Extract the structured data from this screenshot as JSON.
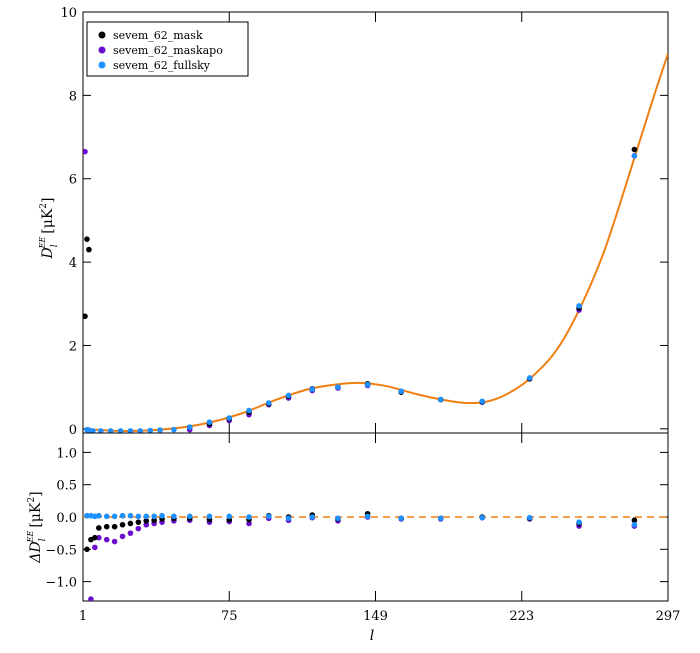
{
  "chart_data": [
    {
      "type": "scatter",
      "panel": "top",
      "ylabel": "D_l^EE [μK²]",
      "ylabel_parts": {
        "sym": "D",
        "sub": "l",
        "sup": "EE",
        "unit": "[μK",
        "unit_sup": "2",
        "unit_close": "]"
      },
      "xlim": [
        1,
        297
      ],
      "ylim": [
        -0.1,
        10
      ],
      "x_ticks": [
        1,
        75,
        149,
        223,
        297
      ],
      "y_ticks": [
        0,
        2,
        4,
        6,
        8,
        10
      ],
      "y_tick_labels": [
        "0",
        "2",
        "4",
        "6",
        "8",
        "10"
      ],
      "legend_position": "top-left",
      "series": [
        {
          "name": "sevem_62_mask",
          "color": "#000000",
          "points": [
            [
              2,
              2.7
            ],
            [
              3,
              4.55
            ],
            [
              4,
              4.3
            ],
            [
              55,
              0.04
            ],
            [
              65,
              0.12
            ],
            [
              75,
              0.24
            ],
            [
              85,
              0.4
            ],
            [
              95,
              0.6
            ],
            [
              105,
              0.78
            ],
            [
              117,
              0.96
            ],
            [
              130,
              1.0
            ],
            [
              145,
              1.08
            ],
            [
              162,
              0.88
            ],
            [
              182,
              0.7
            ],
            [
              203,
              0.65
            ],
            [
              227,
              1.2
            ],
            [
              252,
              2.9
            ],
            [
              280,
              6.7
            ]
          ]
        },
        {
          "name": "sevem_62_maskapo",
          "color": "#6a0dcc",
          "points": [
            [
              2,
              6.65
            ],
            [
              55,
              -0.02
            ],
            [
              65,
              0.08
            ],
            [
              75,
              0.2
            ],
            [
              85,
              0.34
            ],
            [
              95,
              0.58
            ],
            [
              105,
              0.74
            ],
            [
              117,
              0.92
            ],
            [
              130,
              0.98
            ],
            [
              145,
              1.04
            ],
            [
              162,
              0.9
            ],
            [
              182,
              0.7
            ],
            [
              203,
              0.64
            ],
            [
              227,
              1.2
            ],
            [
              252,
              2.85
            ],
            [
              280,
              6.55
            ]
          ]
        },
        {
          "name": "sevem_62_fullsky",
          "color": "#1e90ff",
          "points": [
            [
              3,
              -0.02
            ],
            [
              4,
              -0.03
            ],
            [
              6,
              -0.05
            ],
            [
              10,
              -0.05
            ],
            [
              15,
              -0.05
            ],
            [
              20,
              -0.05
            ],
            [
              25,
              -0.05
            ],
            [
              30,
              -0.05
            ],
            [
              35,
              -0.04
            ],
            [
              40,
              -0.03
            ],
            [
              47,
              -0.02
            ],
            [
              55,
              0.04
            ],
            [
              65,
              0.16
            ],
            [
              75,
              0.26
            ],
            [
              85,
              0.44
            ],
            [
              95,
              0.62
            ],
            [
              105,
              0.8
            ],
            [
              117,
              0.95
            ],
            [
              130,
              1.0
            ],
            [
              145,
              1.06
            ],
            [
              162,
              0.9
            ],
            [
              182,
              0.7
            ],
            [
              203,
              0.66
            ],
            [
              227,
              1.22
            ],
            [
              252,
              2.95
            ],
            [
              280,
              6.55
            ]
          ]
        }
      ],
      "model_curve": {
        "color": "#f07f13",
        "points": [
          [
            2,
            0.0
          ],
          [
            20,
            -0.05
          ],
          [
            40,
            -0.02
          ],
          [
            60,
            0.1
          ],
          [
            80,
            0.35
          ],
          [
            100,
            0.72
          ],
          [
            115,
            0.95
          ],
          [
            130,
            1.07
          ],
          [
            142,
            1.1
          ],
          [
            155,
            1.02
          ],
          [
            170,
            0.83
          ],
          [
            185,
            0.68
          ],
          [
            195,
            0.62
          ],
          [
            205,
            0.65
          ],
          [
            215,
            0.82
          ],
          [
            227,
            1.2
          ],
          [
            240,
            1.85
          ],
          [
            252,
            2.85
          ],
          [
            265,
            4.3
          ],
          [
            280,
            6.5
          ],
          [
            290,
            8.0
          ],
          [
            297,
            9.0
          ]
        ]
      }
    },
    {
      "type": "scatter",
      "panel": "bottom",
      "xlabel": "l",
      "ylabel": "ΔD_l^EE [μK²]",
      "ylabel_parts": {
        "sym": "ΔD",
        "sub": "l",
        "sup": "EE",
        "unit": "[μK",
        "unit_sup": "2",
        "unit_close": "]"
      },
      "xlim": [
        1,
        297
      ],
      "ylim": [
        -1.3,
        1.3
      ],
      "x_ticks": [
        1,
        75,
        149,
        223,
        297
      ],
      "x_tick_labels": [
        "1",
        "75",
        "149",
        "223",
        "297"
      ],
      "y_ticks": [
        -1.0,
        -0.5,
        0.0,
        0.5,
        1.0
      ],
      "y_tick_labels": [
        "−1.0",
        "−0.5",
        "0.0",
        "0.5",
        "1.0"
      ],
      "zero_line": {
        "y": 0.0,
        "color": "#f07f13",
        "style": "dashed"
      },
      "series": [
        {
          "name": "sevem_62_mask",
          "color": "#000000",
          "points": [
            [
              3,
              -0.5
            ],
            [
              5,
              -0.35
            ],
            [
              7,
              -0.32
            ],
            [
              9,
              -0.17
            ],
            [
              13,
              -0.15
            ],
            [
              17,
              -0.15
            ],
            [
              21,
              -0.12
            ],
            [
              25,
              -0.1
            ],
            [
              29,
              -0.08
            ],
            [
              33,
              -0.06
            ],
            [
              37,
              -0.05
            ],
            [
              41,
              -0.03
            ],
            [
              47,
              -0.02
            ],
            [
              55,
              -0.02
            ],
            [
              65,
              -0.04
            ],
            [
              75,
              -0.04
            ],
            [
              85,
              -0.04
            ],
            [
              95,
              0.02
            ],
            [
              105,
              0.0
            ],
            [
              117,
              0.03
            ],
            [
              130,
              -0.03
            ],
            [
              145,
              0.05
            ],
            [
              162,
              -0.02
            ],
            [
              182,
              -0.02
            ],
            [
              203,
              0.0
            ],
            [
              227,
              -0.02
            ],
            [
              252,
              -0.1
            ],
            [
              280,
              -0.05
            ]
          ]
        },
        {
          "name": "sevem_62_maskapo",
          "color": "#6a0dcc",
          "points": [
            [
              5,
              -1.27
            ],
            [
              7,
              -0.47
            ],
            [
              9,
              -0.32
            ],
            [
              13,
              -0.35
            ],
            [
              17,
              -0.38
            ],
            [
              21,
              -0.3
            ],
            [
              25,
              -0.25
            ],
            [
              29,
              -0.18
            ],
            [
              33,
              -0.12
            ],
            [
              37,
              -0.1
            ],
            [
              41,
              -0.08
            ],
            [
              47,
              -0.06
            ],
            [
              55,
              -0.05
            ],
            [
              65,
              -0.08
            ],
            [
              75,
              -0.07
            ],
            [
              85,
              -0.1
            ],
            [
              95,
              -0.02
            ],
            [
              105,
              -0.05
            ],
            [
              117,
              -0.01
            ],
            [
              130,
              -0.06
            ],
            [
              145,
              0.0
            ],
            [
              162,
              -0.03
            ],
            [
              182,
              -0.03
            ],
            [
              203,
              -0.01
            ],
            [
              227,
              -0.03
            ],
            [
              252,
              -0.14
            ],
            [
              280,
              -0.14
            ]
          ]
        },
        {
          "name": "sevem_62_fullsky",
          "color": "#1e90ff",
          "points": [
            [
              3,
              0.02
            ],
            [
              5,
              0.02
            ],
            [
              7,
              0.01
            ],
            [
              9,
              0.02
            ],
            [
              13,
              0.01
            ],
            [
              17,
              0.01
            ],
            [
              21,
              0.02
            ],
            [
              25,
              0.02
            ],
            [
              29,
              0.01
            ],
            [
              33,
              0.01
            ],
            [
              37,
              0.01
            ],
            [
              41,
              0.02
            ],
            [
              47,
              0.01
            ],
            [
              55,
              0.01
            ],
            [
              65,
              0.01
            ],
            [
              75,
              0.01
            ],
            [
              85,
              0.0
            ],
            [
              95,
              0.01
            ],
            [
              105,
              -0.02
            ],
            [
              117,
              0.0
            ],
            [
              130,
              -0.02
            ],
            [
              145,
              0.01
            ],
            [
              162,
              -0.02
            ],
            [
              182,
              -0.02
            ],
            [
              203,
              -0.01
            ],
            [
              227,
              -0.01
            ],
            [
              252,
              -0.08
            ],
            [
              280,
              -0.12
            ]
          ]
        }
      ]
    }
  ]
}
